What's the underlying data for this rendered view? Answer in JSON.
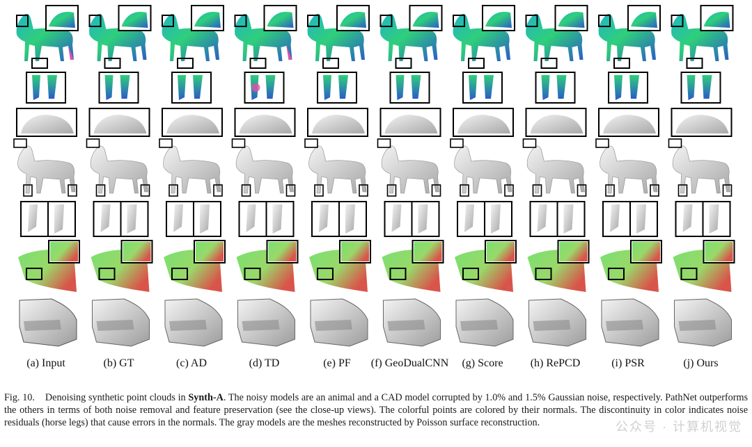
{
  "figure": {
    "columns": [
      {
        "label": "(a) Input"
      },
      {
        "label": "(b) GT"
      },
      {
        "label": "(c) AD"
      },
      {
        "label": "(d) TD"
      },
      {
        "label": "(e) PF"
      },
      {
        "label": "(f) GeoDualCNN"
      },
      {
        "label": "(g) Score"
      },
      {
        "label": "(h) RePCD"
      },
      {
        "label": "(i) PSR"
      },
      {
        "label": "(j) Ours"
      }
    ],
    "colors": {
      "normal_green": "#2fcf7a",
      "normal_cyan": "#22b4c8",
      "normal_blue": "#2a5cc8",
      "normal_magenta": "#e052a8",
      "cad_red": "#d9544a",
      "cad_green": "#79e070",
      "gray_mesh": "#c9c9c9"
    }
  },
  "caption": {
    "prefix": "Fig. 10.",
    "lead": "Denoising synthetic point clouds in",
    "dataset": "Synth-A",
    "rest": ". The noisy models are an animal and a CAD model corrupted by 1.0% and 1.5% Gaussian noise, respectively. PathNet outperforms the others in terms of both noise removal and feature preservation (see the close-up views). The colorful points are colored by their normals. The discontinuity in color indicates noise residuals (horse legs) that cause errors in the normals. The gray models are the meshes reconstructed by Poisson surface reconstruction."
  },
  "watermark": "公众号 · 计算机视觉"
}
